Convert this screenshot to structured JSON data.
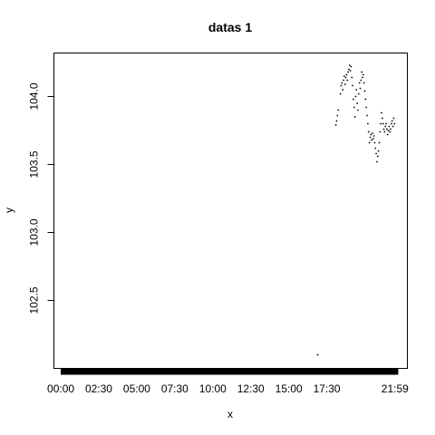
{
  "chart_data": {
    "type": "scatter",
    "title": "datas 1",
    "xlabel": "x",
    "ylabel": "y",
    "x_tick_labels": [
      "00:00",
      "02:30",
      "05:00",
      "07:30",
      "10:00",
      "12:30",
      "15:00",
      "17:30",
      "21:59"
    ],
    "x_tick_hours": [
      0,
      2.5,
      5,
      7.5,
      10,
      12.5,
      15,
      17.5,
      21.983
    ],
    "xlim_hours": [
      -0.45,
      22.8
    ],
    "y_ticks": [
      102.5,
      103.0,
      103.5,
      104.0
    ],
    "y_tick_labels": [
      "102.5",
      "103.0",
      "103.5",
      "104.0"
    ],
    "ylim": [
      102.0,
      104.32
    ],
    "grid": false,
    "legend": "none",
    "colors": {
      "points": "#000000",
      "axis": "#000000",
      "background": "#ffffff"
    },
    "series": [
      {
        "points": [
          [
            16.9,
            102.1
          ],
          [
            18.1,
            103.79
          ],
          [
            18.15,
            103.82
          ],
          [
            18.2,
            103.86
          ],
          [
            18.25,
            103.9
          ],
          [
            18.4,
            104.02
          ],
          [
            18.45,
            104.08
          ],
          [
            18.5,
            104.1
          ],
          [
            18.55,
            104.05
          ],
          [
            18.6,
            104.12
          ],
          [
            18.65,
            104.15
          ],
          [
            18.7,
            104.09
          ],
          [
            18.75,
            104.14
          ],
          [
            18.8,
            104.16
          ],
          [
            18.85,
            104.12
          ],
          [
            18.9,
            104.18
          ],
          [
            18.95,
            104.2
          ],
          [
            19.0,
            104.23
          ],
          [
            19.05,
            104.19
          ],
          [
            19.1,
            104.22
          ],
          [
            19.15,
            104.14
          ],
          [
            19.2,
            104.08
          ],
          [
            19.25,
            103.98
          ],
          [
            19.3,
            103.92
          ],
          [
            19.35,
            103.85
          ],
          [
            19.4,
            104.0
          ],
          [
            19.45,
            104.05
          ],
          [
            19.5,
            103.95
          ],
          [
            19.55,
            103.9
          ],
          [
            19.6,
            104.02
          ],
          [
            19.65,
            104.1
          ],
          [
            19.7,
            104.06
          ],
          [
            19.75,
            104.12
          ],
          [
            19.8,
            104.18
          ],
          [
            19.85,
            104.14
          ],
          [
            19.9,
            104.16
          ],
          [
            19.95,
            104.1
          ],
          [
            20.0,
            104.04
          ],
          [
            20.05,
            103.98
          ],
          [
            20.1,
            103.92
          ],
          [
            20.15,
            103.86
          ],
          [
            20.2,
            103.8
          ],
          [
            20.25,
            103.74
          ],
          [
            20.3,
            103.66
          ],
          [
            20.35,
            103.7
          ],
          [
            20.4,
            103.72
          ],
          [
            20.45,
            103.68
          ],
          [
            20.5,
            103.73
          ],
          [
            20.55,
            103.69
          ],
          [
            20.6,
            103.71
          ],
          [
            20.65,
            103.66
          ],
          [
            20.7,
            103.62
          ],
          [
            20.75,
            103.58
          ],
          [
            20.8,
            103.52
          ],
          [
            20.85,
            103.56
          ],
          [
            20.9,
            103.6
          ],
          [
            20.95,
            103.66
          ],
          [
            21.0,
            103.74
          ],
          [
            21.05,
            103.8
          ],
          [
            21.1,
            103.88
          ],
          [
            21.15,
            103.84
          ],
          [
            21.2,
            103.8
          ],
          [
            21.25,
            103.76
          ],
          [
            21.3,
            103.74
          ],
          [
            21.35,
            103.78
          ],
          [
            21.4,
            103.8
          ],
          [
            21.45,
            103.76
          ],
          [
            21.5,
            103.72
          ],
          [
            21.55,
            103.75
          ],
          [
            21.6,
            103.78
          ],
          [
            21.65,
            103.74
          ],
          [
            21.7,
            103.76
          ],
          [
            21.75,
            103.8
          ],
          [
            21.8,
            103.82
          ],
          [
            21.85,
            103.78
          ],
          [
            21.9,
            103.84
          ],
          [
            21.95,
            103.8
          ]
        ]
      }
    ],
    "band_series": {
      "note_value_range_hours": [
        0,
        22.2
      ],
      "y_value": 102.0
    }
  }
}
